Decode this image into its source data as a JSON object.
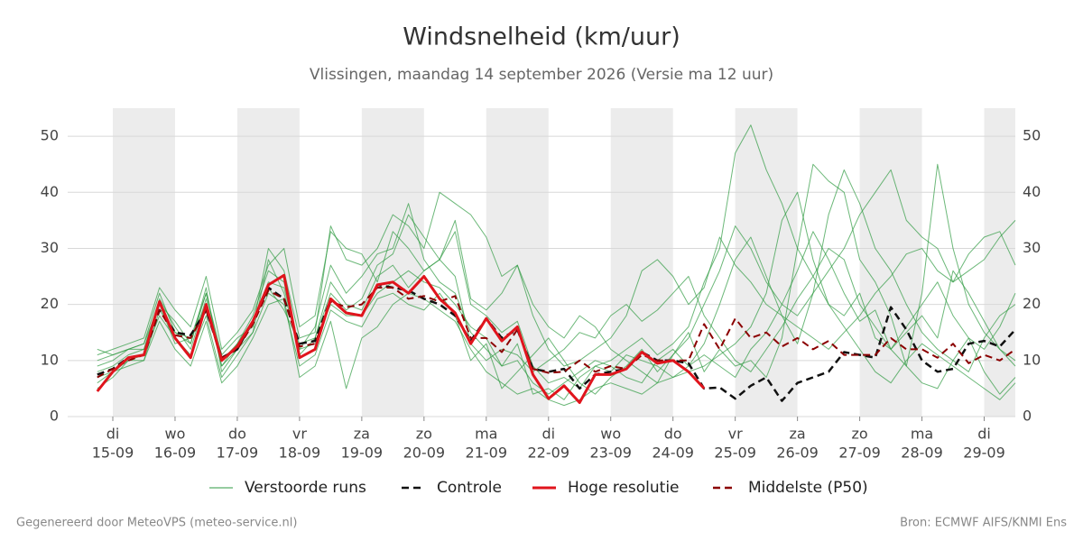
{
  "chart_data": {
    "type": "line",
    "title": "Windsnelheid (km/uur)",
    "subtitle": "Vlissingen, maandag 14 september 2026 (Versie ma 12 uur)",
    "footer_left": "Gegenereerd door MeteoVPS (meteo-service.nl)",
    "footer_right": "Bron: ECMWF AIFS/KNMI Ens",
    "x": [
      -6,
      0,
      6,
      12,
      18,
      24,
      30,
      36,
      42,
      48,
      54,
      60,
      66,
      72,
      78,
      84,
      90,
      96,
      102,
      108,
      114,
      120,
      126,
      132,
      138,
      144,
      150,
      156,
      162,
      168,
      174,
      180,
      186,
      192,
      198,
      204,
      210,
      216,
      222,
      228,
      234,
      240,
      246,
      252,
      258,
      264,
      270,
      276,
      282,
      288,
      294,
      300,
      306,
      312,
      318,
      324,
      330,
      336,
      342,
      348
    ],
    "xlim": [
      -17.4,
      348
    ],
    "xticks": [
      {
        "value": 0,
        "label": "15-09"
      },
      {
        "value": 24,
        "label": "16-09"
      },
      {
        "value": 48,
        "label": "17-09"
      },
      {
        "value": 72,
        "label": "18-09"
      },
      {
        "value": 96,
        "label": "19-09"
      },
      {
        "value": 120,
        "label": "20-09"
      },
      {
        "value": 144,
        "label": "21-09"
      },
      {
        "value": 168,
        "label": "22-09"
      },
      {
        "value": 192,
        "label": "23-09"
      },
      {
        "value": 216,
        "label": "24-09"
      },
      {
        "value": 240,
        "label": "25-09"
      },
      {
        "value": 264,
        "label": "26-09"
      },
      {
        "value": 288,
        "label": "27-09"
      },
      {
        "value": 312,
        "label": "28-09"
      },
      {
        "value": 336,
        "label": "29-09"
      }
    ],
    "xtick_weekdays": [
      "di",
      "wo",
      "do",
      "vr",
      "za",
      "zo",
      "ma",
      "di",
      "wo",
      "do",
      "vr",
      "za",
      "zo",
      "ma",
      "di"
    ],
    "ylim": [
      0,
      55
    ],
    "yticks": [
      0,
      10,
      20,
      30,
      40,
      50
    ],
    "grid": true,
    "ensemble": {
      "name": "Verstoorde runs",
      "color": "#2e9a40",
      "members": [
        [
          8,
          9,
          11,
          12,
          21,
          16,
          12,
          21,
          9,
          13,
          18,
          26,
          24,
          11,
          14,
          24,
          20,
          19,
          25,
          27,
          23,
          26,
          28,
          33,
          20,
          18,
          15,
          17,
          9,
          6,
          7,
          5,
          9,
          10,
          12,
          14,
          11,
          13,
          16,
          24,
          30,
          47,
          52,
          44,
          38,
          30,
          25,
          20,
          18,
          22,
          14,
          12,
          16,
          20,
          24,
          18,
          14,
          12,
          16,
          22
        ],
        [
          10,
          11,
          12,
          13,
          22,
          15,
          13,
          23,
          8,
          12,
          15,
          28,
          22,
          12,
          16,
          27,
          22,
          25,
          29,
          30,
          38,
          28,
          24,
          22,
          15,
          12,
          9,
          10,
          6,
          4,
          6,
          8,
          10,
          9,
          7,
          6,
          10,
          12,
          9,
          13,
          20,
          28,
          32,
          25,
          18,
          13,
          22,
          36,
          44,
          38,
          30,
          26,
          20,
          15,
          12,
          10,
          8,
          14,
          18,
          20
        ],
        [
          6,
          8,
          10,
          11,
          18,
          14,
          11,
          18,
          7,
          11,
          15,
          22,
          20,
          9,
          11,
          19,
          17,
          16,
          21,
          22,
          20,
          19,
          22,
          18,
          10,
          13,
          5,
          8,
          11,
          14,
          10,
          6,
          4,
          7,
          9,
          12,
          8,
          11,
          15,
          8,
          12,
          9,
          10,
          7,
          14,
          30,
          45,
          42,
          40,
          28,
          24,
          18,
          9,
          6,
          5,
          10,
          14,
          8,
          4,
          7
        ],
        [
          9,
          10,
          12,
          13,
          20,
          13,
          14,
          22,
          11,
          14,
          16,
          30,
          26,
          14,
          15,
          34,
          28,
          27,
          30,
          36,
          34,
          30,
          40,
          38,
          36,
          32,
          25,
          27,
          18,
          12,
          9,
          10,
          12,
          14,
          18,
          26,
          28,
          25,
          20,
          23,
          32,
          27,
          24,
          20,
          18,
          16,
          14,
          12,
          15,
          18,
          22,
          25,
          29,
          30,
          26,
          24,
          29,
          32,
          33,
          27
        ],
        [
          5,
          7,
          10,
          10,
          17,
          12,
          9,
          17,
          6,
          9,
          14,
          20,
          21,
          7,
          9,
          17,
          5,
          14,
          16,
          20,
          22,
          21,
          19,
          17,
          12,
          8,
          6,
          4,
          5,
          3,
          2,
          3,
          5,
          6,
          5,
          4,
          6,
          7,
          8,
          9,
          11,
          13,
          16,
          22,
          35,
          40,
          28,
          20,
          16,
          12,
          8,
          6,
          10,
          13,
          11,
          9,
          7,
          5,
          3,
          6
        ],
        [
          11,
          12,
          13,
          14,
          23,
          19,
          16,
          25,
          12,
          15,
          19,
          27,
          30,
          16,
          18,
          33,
          30,
          29,
          24,
          33,
          30,
          26,
          28,
          35,
          21,
          19,
          22,
          27,
          20,
          16,
          14,
          18,
          16,
          12,
          10,
          8,
          6,
          11,
          14,
          20,
          26,
          34,
          30,
          24,
          20,
          18,
          22,
          26,
          30,
          36,
          40,
          44,
          35,
          32,
          30,
          24,
          26,
          28,
          32,
          35
        ],
        [
          7,
          8,
          9,
          10,
          19,
          15,
          14,
          20,
          9,
          12,
          17,
          23,
          19,
          13,
          14,
          22,
          19,
          21,
          27,
          29,
          36,
          32,
          28,
          25,
          13,
          10,
          12,
          11,
          8,
          10,
          12,
          15,
          14,
          18,
          20,
          17,
          19,
          22,
          25,
          18,
          14,
          10,
          8,
          12,
          16,
          21,
          25,
          30,
          28,
          20,
          16,
          12,
          9,
          22,
          45,
          30,
          20,
          15,
          12,
          10
        ],
        [
          12,
          11,
          12,
          12,
          20,
          17,
          13,
          22,
          10,
          13,
          17,
          24,
          23,
          12,
          13,
          20,
          18,
          18,
          22,
          24,
          26,
          24,
          23,
          20,
          16,
          14,
          9,
          13,
          4,
          5,
          3,
          7,
          9,
          8,
          11,
          10,
          9,
          7,
          9,
          11,
          9,
          7,
          12,
          15,
          20,
          26,
          33,
          28,
          22,
          17,
          19,
          12,
          15,
          18,
          14,
          26,
          22,
          17,
          12,
          9
        ]
      ]
    },
    "series": [
      {
        "name": "Controle",
        "color": "#111111",
        "dashed": true,
        "values": [
          7.5,
          8.5,
          10.5,
          11,
          19,
          15,
          14.5,
          19,
          10.5,
          12,
          17,
          23,
          21,
          13,
          13.5,
          21,
          18.5,
          18,
          23.5,
          23,
          22.5,
          21,
          20,
          18,
          13.5,
          17.5,
          14,
          15.5,
          8.5,
          8,
          8.5,
          5,
          7.5,
          8,
          8.5,
          11.5,
          10,
          10,
          9.5,
          5,
          5.2,
          3.2,
          5.5,
          7,
          2.8,
          6,
          7,
          8,
          11.5,
          11,
          10.5,
          19.5,
          15.5,
          10,
          8,
          8.5,
          13,
          13.5,
          12.5,
          15.5
        ]
      },
      {
        "name": "Hoge resolutie",
        "color": "#e0141c",
        "dashed": false,
        "values": [
          4.5,
          8,
          10.5,
          11,
          20.5,
          14,
          10.5,
          20,
          10,
          12.5,
          17,
          23.5,
          25.2,
          10.5,
          12,
          21,
          18.5,
          18,
          23.5,
          24,
          22,
          25,
          21,
          18.5,
          13,
          17.5,
          13.5,
          16,
          7.5,
          3.2,
          5.5,
          2.5,
          7.5,
          7.5,
          8.5,
          11.5,
          9.5,
          10,
          8,
          5,
          null,
          null,
          null,
          null,
          null,
          null,
          null,
          null,
          null,
          null,
          null,
          null,
          null,
          null,
          null,
          null,
          null,
          null,
          null,
          null
        ]
      },
      {
        "name": "Middelste (P50)",
        "color": "#8b0000",
        "dashed": true,
        "values": [
          7,
          8.5,
          10,
          11,
          19,
          14.5,
          14,
          19,
          10.5,
          12,
          16.5,
          22.5,
          21,
          12.5,
          13,
          20.5,
          19.5,
          20,
          23,
          23,
          21,
          21.5,
          20.5,
          21.5,
          14,
          14,
          11.5,
          15.5,
          8.5,
          7.8,
          8,
          10,
          8,
          9,
          8.5,
          11,
          10,
          10,
          10,
          16.5,
          12,
          17.5,
          14,
          15,
          12.5,
          14,
          12,
          13.5,
          11,
          11,
          11,
          14,
          12,
          12,
          10.5,
          13,
          9.5,
          11,
          10,
          12
        ]
      }
    ]
  }
}
